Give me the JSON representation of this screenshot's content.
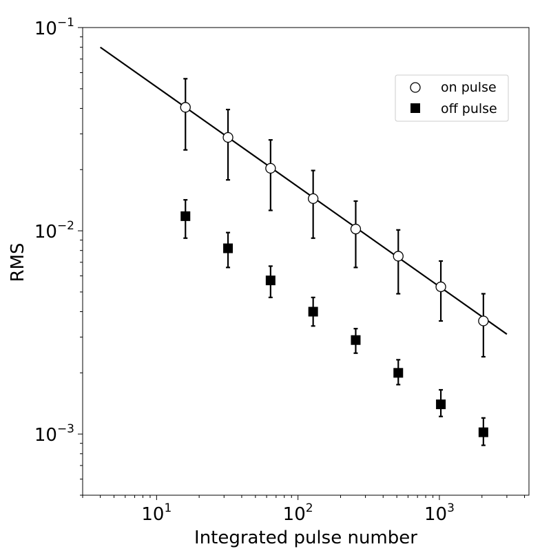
{
  "chart_data": {
    "type": "scatter",
    "xlabel": "Integrated pulse number",
    "ylabel": "RMS",
    "xscale": "log",
    "yscale": "log",
    "xlim": [
      3,
      4300
    ],
    "ylim": [
      0.0005,
      0.1
    ],
    "x_major_ticks": [
      {
        "value": 10,
        "base": "10",
        "exp": "1"
      },
      {
        "value": 100,
        "base": "10",
        "exp": "2"
      },
      {
        "value": 1000,
        "base": "10",
        "exp": "3"
      }
    ],
    "y_major_ticks": [
      {
        "value": 0.001,
        "base": "10",
        "exp": "−3"
      },
      {
        "value": 0.01,
        "base": "10",
        "exp": "−2"
      },
      {
        "value": 0.1,
        "base": "10",
        "exp": "−1"
      }
    ],
    "grid": false,
    "legend_position": "top-right",
    "series": [
      {
        "name": "on pulse",
        "marker": "open-circle",
        "x": [
          16,
          32,
          64,
          128,
          256,
          512,
          1024,
          2048
        ],
        "y": [
          0.0405,
          0.0288,
          0.0203,
          0.0144,
          0.0102,
          0.0075,
          0.0053,
          0.0036
        ],
        "y_err_low": [
          0.025,
          0.0178,
          0.0126,
          0.0092,
          0.0066,
          0.0049,
          0.0036,
          0.0024
        ],
        "y_err_high": [
          0.056,
          0.0395,
          0.028,
          0.0198,
          0.014,
          0.0101,
          0.0071,
          0.0049
        ]
      },
      {
        "name": "off pulse",
        "marker": "filled-square",
        "x": [
          16,
          32,
          64,
          128,
          256,
          512,
          1024,
          2048
        ],
        "y": [
          0.0118,
          0.0082,
          0.0057,
          0.004,
          0.0029,
          0.002,
          0.0014,
          0.00102
        ],
        "y_err_low": [
          0.0092,
          0.0066,
          0.0047,
          0.0034,
          0.0025,
          0.00175,
          0.00122,
          0.00088
        ],
        "y_err_high": [
          0.0142,
          0.0098,
          0.0067,
          0.0047,
          0.0033,
          0.00232,
          0.00165,
          0.0012
        ]
      }
    ],
    "fit_line": {
      "x": [
        4,
        3000
      ],
      "y": [
        0.08,
        0.0031
      ]
    }
  }
}
